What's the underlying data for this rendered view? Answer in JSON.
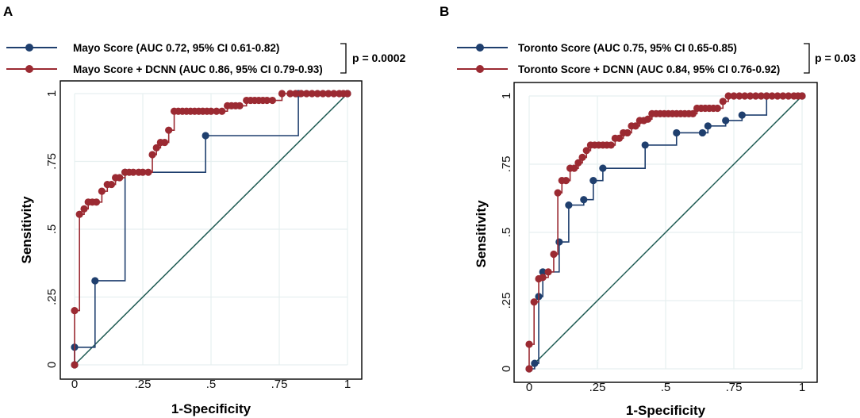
{
  "colors": {
    "blue_series": "#1f3f6e",
    "red_series": "#9b2a32",
    "diagonal": "#1d5a52",
    "grid": "#e6eff0",
    "axis": "#000000"
  },
  "chart_data": [
    {
      "panel": "A",
      "type": "line",
      "xlabel": "1-Specificity",
      "ylabel": "Sensitivity",
      "xlim": [
        0,
        1
      ],
      "ylim": [
        0,
        1
      ],
      "grid": true,
      "xticks": [
        {
          "v": 0,
          "label": "0"
        },
        {
          "v": 0.25,
          "label": ".25"
        },
        {
          "v": 0.5,
          "label": ".5"
        },
        {
          "v": 0.75,
          "label": ".75"
        },
        {
          "v": 1,
          "label": "1"
        }
      ],
      "yticks": [
        {
          "v": 0,
          "label": "0"
        },
        {
          "v": 0.25,
          "label": ".25"
        },
        {
          "v": 0.5,
          "label": ".5"
        },
        {
          "v": 0.75,
          "label": ".75"
        },
        {
          "v": 1,
          "label": "1"
        }
      ],
      "p_value": "p = 0.0002",
      "legend_position": "top",
      "series": [
        {
          "name": "Mayo Score (AUC 0.72, 95% CI 0.61-0.82)",
          "color": "#1f3f6e",
          "step": true,
          "points": [
            [
              0,
              0
            ],
            [
              0,
              0.065
            ],
            [
              0.075,
              0.31
            ],
            [
              0.185,
              0.71
            ],
            [
              0.48,
              0.845
            ],
            [
              0.82,
              1
            ],
            [
              1,
              1
            ]
          ]
        },
        {
          "name": "Mayo Score + DCNN (AUC 0.86, 95% CI 0.79-0.93)",
          "color": "#9b2a32",
          "step": true,
          "points": [
            [
              0,
              0
            ],
            [
              0,
              0.2
            ],
            [
              0.018,
              0.555
            ],
            [
              0.035,
              0.575
            ],
            [
              0.05,
              0.6
            ],
            [
              0.065,
              0.6
            ],
            [
              0.08,
              0.6
            ],
            [
              0.1,
              0.64
            ],
            [
              0.12,
              0.665
            ],
            [
              0.135,
              0.665
            ],
            [
              0.15,
              0.69
            ],
            [
              0.165,
              0.69
            ],
            [
              0.185,
              0.71
            ],
            [
              0.2,
              0.71
            ],
            [
              0.215,
              0.71
            ],
            [
              0.235,
              0.71
            ],
            [
              0.25,
              0.71
            ],
            [
              0.27,
              0.71
            ],
            [
              0.285,
              0.775
            ],
            [
              0.3,
              0.8
            ],
            [
              0.315,
              0.82
            ],
            [
              0.33,
              0.82
            ],
            [
              0.345,
              0.865
            ],
            [
              0.365,
              0.935
            ],
            [
              0.38,
              0.935
            ],
            [
              0.395,
              0.935
            ],
            [
              0.41,
              0.935
            ],
            [
              0.425,
              0.935
            ],
            [
              0.44,
              0.935
            ],
            [
              0.455,
              0.935
            ],
            [
              0.47,
              0.935
            ],
            [
              0.485,
              0.935
            ],
            [
              0.5,
              0.935
            ],
            [
              0.52,
              0.935
            ],
            [
              0.54,
              0.935
            ],
            [
              0.56,
              0.955
            ],
            [
              0.575,
              0.955
            ],
            [
              0.59,
              0.955
            ],
            [
              0.605,
              0.955
            ],
            [
              0.63,
              0.975
            ],
            [
              0.645,
              0.975
            ],
            [
              0.66,
              0.975
            ],
            [
              0.675,
              0.975
            ],
            [
              0.69,
              0.975
            ],
            [
              0.705,
              0.975
            ],
            [
              0.725,
              0.975
            ],
            [
              0.76,
              1
            ],
            [
              0.79,
              1
            ],
            [
              0.81,
              1
            ],
            [
              0.83,
              1
            ],
            [
              0.85,
              1
            ],
            [
              0.87,
              1
            ],
            [
              0.89,
              1
            ],
            [
              0.91,
              1
            ],
            [
              0.93,
              1
            ],
            [
              0.95,
              1
            ],
            [
              0.97,
              1
            ],
            [
              0.985,
              1
            ],
            [
              1,
              1
            ]
          ]
        }
      ]
    },
    {
      "panel": "B",
      "type": "line",
      "xlabel": "1-Specificity",
      "ylabel": "Sensitivity",
      "xlim": [
        0,
        1
      ],
      "ylim": [
        0,
        1
      ],
      "grid": true,
      "xticks": [
        {
          "v": 0,
          "label": "0"
        },
        {
          "v": 0.25,
          "label": ".25"
        },
        {
          "v": 0.5,
          "label": ".5"
        },
        {
          "v": 0.75,
          "label": ".75"
        },
        {
          "v": 1,
          "label": "1"
        }
      ],
      "yticks": [
        {
          "v": 0,
          "label": "0"
        },
        {
          "v": 0.25,
          "label": ".25"
        },
        {
          "v": 0.5,
          "label": ".5"
        },
        {
          "v": 0.75,
          "label": ".75"
        },
        {
          "v": 1,
          "label": "1"
        }
      ],
      "p_value": "p = 0.03",
      "legend_position": "top",
      "series": [
        {
          "name": "Toronto Score (AUC 0.75, 95% CI 0.65-0.85)",
          "color": "#1f3f6e",
          "step": true,
          "points": [
            [
              0,
              0
            ],
            [
              0.02,
              0.02
            ],
            [
              0.035,
              0.265
            ],
            [
              0.05,
              0.355
            ],
            [
              0.11,
              0.465
            ],
            [
              0.145,
              0.6
            ],
            [
              0.2,
              0.62
            ],
            [
              0.235,
              0.69
            ],
            [
              0.27,
              0.735
            ],
            [
              0.425,
              0.82
            ],
            [
              0.54,
              0.865
            ],
            [
              0.635,
              0.865
            ],
            [
              0.655,
              0.89
            ],
            [
              0.72,
              0.91
            ],
            [
              0.78,
              0.93
            ],
            [
              0.87,
              1
            ],
            [
              1,
              1
            ]
          ]
        },
        {
          "name": "Toronto Score + DCNN (AUC 0.84, 95% CI 0.76-0.92)",
          "color": "#9b2a32",
          "step": true,
          "points": [
            [
              0,
              0
            ],
            [
              0,
              0.09
            ],
            [
              0.018,
              0.245
            ],
            [
              0.035,
              0.33
            ],
            [
              0.05,
              0.335
            ],
            [
              0.07,
              0.355
            ],
            [
              0.09,
              0.42
            ],
            [
              0.105,
              0.645
            ],
            [
              0.12,
              0.69
            ],
            [
              0.135,
              0.69
            ],
            [
              0.15,
              0.735
            ],
            [
              0.165,
              0.735
            ],
            [
              0.18,
              0.755
            ],
            [
              0.195,
              0.775
            ],
            [
              0.21,
              0.8
            ],
            [
              0.225,
              0.82
            ],
            [
              0.24,
              0.82
            ],
            [
              0.255,
              0.82
            ],
            [
              0.27,
              0.82
            ],
            [
              0.285,
              0.82
            ],
            [
              0.3,
              0.82
            ],
            [
              0.315,
              0.845
            ],
            [
              0.33,
              0.845
            ],
            [
              0.345,
              0.865
            ],
            [
              0.36,
              0.865
            ],
            [
              0.375,
              0.89
            ],
            [
              0.39,
              0.89
            ],
            [
              0.405,
              0.91
            ],
            [
              0.42,
              0.91
            ],
            [
              0.435,
              0.915
            ],
            [
              0.45,
              0.935
            ],
            [
              0.465,
              0.935
            ],
            [
              0.48,
              0.935
            ],
            [
              0.495,
              0.935
            ],
            [
              0.51,
              0.935
            ],
            [
              0.525,
              0.935
            ],
            [
              0.54,
              0.935
            ],
            [
              0.555,
              0.935
            ],
            [
              0.57,
              0.935
            ],
            [
              0.585,
              0.935
            ],
            [
              0.6,
              0.935
            ],
            [
              0.615,
              0.955
            ],
            [
              0.63,
              0.955
            ],
            [
              0.645,
              0.955
            ],
            [
              0.66,
              0.955
            ],
            [
              0.675,
              0.955
            ],
            [
              0.69,
              0.955
            ],
            [
              0.71,
              0.98
            ],
            [
              0.73,
              1
            ],
            [
              0.75,
              1
            ],
            [
              0.77,
              1
            ],
            [
              0.79,
              1
            ],
            [
              0.81,
              1
            ],
            [
              0.83,
              1
            ],
            [
              0.85,
              1
            ],
            [
              0.87,
              1
            ],
            [
              0.89,
              1
            ],
            [
              0.91,
              1
            ],
            [
              0.93,
              1
            ],
            [
              0.95,
              1
            ],
            [
              0.97,
              1
            ],
            [
              0.985,
              1
            ],
            [
              1,
              1
            ]
          ]
        }
      ]
    }
  ]
}
